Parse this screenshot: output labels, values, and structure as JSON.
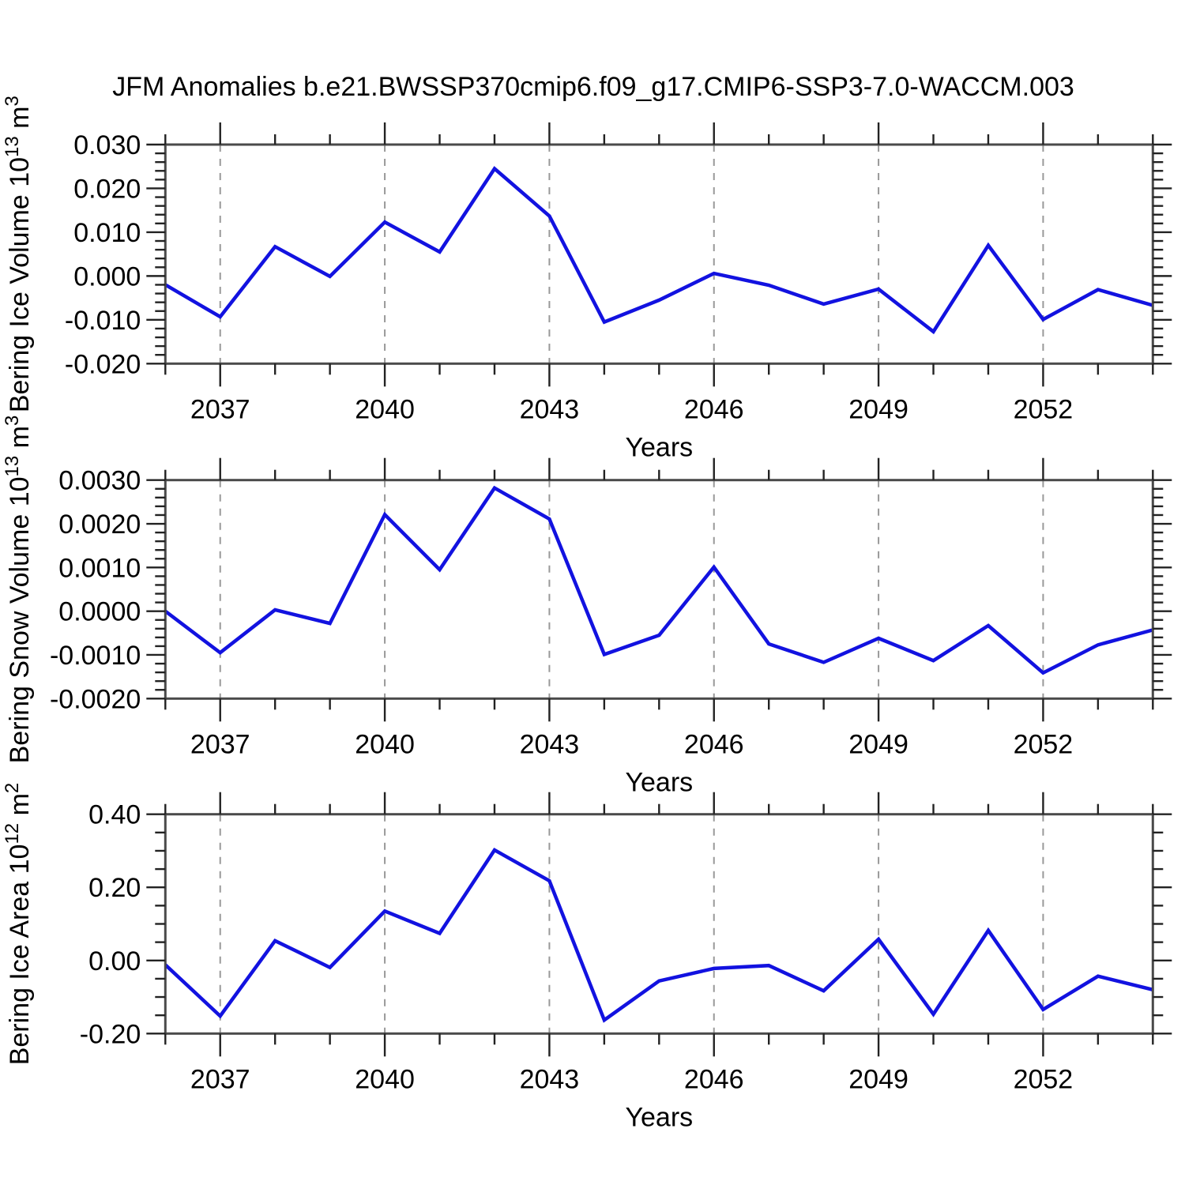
{
  "figure": {
    "title": "JFM Anomalies b.e21.BWSSP370cmip6.f09_g17.CMIP6-SSP3-7.0-WACCM.003",
    "background": "#ffffff",
    "line_color": "#1212e0",
    "frame_color": "#4a4a4a",
    "tick_color": "#222222",
    "grid_color": "#999999",
    "text_color": "#000000"
  },
  "chart_data": [
    {
      "type": "line",
      "panel": "bering-ice-volume",
      "ylabel": "Bering Ice Volume 10^13 m^3",
      "ylabel_parts": [
        {
          "text": "Bering Ice Volume 10"
        },
        {
          "text": "13",
          "sup": true
        },
        {
          "text": " m"
        },
        {
          "text": "3",
          "sup": true
        }
      ],
      "xlabel": "Years",
      "xlim": [
        2036,
        2054
      ],
      "ylim": [
        -0.02,
        0.03
      ],
      "x": [
        2036,
        2037,
        2038,
        2039,
        2040,
        2041,
        2042,
        2043,
        2044,
        2045,
        2046,
        2047,
        2048,
        2049,
        2050,
        2051,
        2052,
        2053,
        2054
      ],
      "values": [
        -0.002,
        -0.0093,
        0.0067,
        -0.0001,
        0.0123,
        0.0055,
        0.0245,
        0.0137,
        -0.0105,
        -0.0055,
        0.0006,
        -0.0021,
        -0.0064,
        -0.003,
        -0.0127,
        0.007,
        -0.0099,
        -0.0031,
        -0.0067
      ],
      "yticks": [
        {
          "v": 0.03,
          "label": "0.030"
        },
        {
          "v": 0.02,
          "label": "0.020"
        },
        {
          "v": 0.01,
          "label": "0.010"
        },
        {
          "v": 0.0,
          "label": "0.000"
        },
        {
          "v": -0.01,
          "label": "-0.010"
        },
        {
          "v": -0.02,
          "label": "-0.020"
        }
      ],
      "ytick_minor_step": 0.002,
      "xticks": [
        {
          "v": 2037,
          "label": "2037"
        },
        {
          "v": 2040,
          "label": "2040"
        },
        {
          "v": 2043,
          "label": "2043"
        },
        {
          "v": 2046,
          "label": "2046"
        },
        {
          "v": 2049,
          "label": "2049"
        },
        {
          "v": 2052,
          "label": "2052"
        }
      ],
      "xtick_minor_step": 1,
      "grid": "vertical dashed at major x ticks",
      "legend": "none"
    },
    {
      "type": "line",
      "panel": "bering-snow-volume",
      "ylabel": "Bering Snow Volume 10^13 m^3",
      "ylabel_parts": [
        {
          "text": "Bering Snow Volume 10"
        },
        {
          "text": "13",
          "sup": true
        },
        {
          "text": " m"
        },
        {
          "text": "3",
          "sup": true
        }
      ],
      "xlabel": "Years",
      "xlim": [
        2036,
        2054
      ],
      "ylim": [
        -0.002,
        0.003
      ],
      "x": [
        2036,
        2037,
        2038,
        2039,
        2040,
        2041,
        2042,
        2043,
        2044,
        2045,
        2046,
        2047,
        2048,
        2049,
        2050,
        2051,
        2052,
        2053,
        2054
      ],
      "values": [
        0.0,
        -0.00095,
        3e-05,
        -0.00028,
        0.00221,
        0.00095,
        0.00282,
        0.00211,
        -0.00099,
        -0.00055,
        0.00101,
        -0.00075,
        -0.00117,
        -0.00062,
        -0.00113,
        -0.00033,
        -0.00141,
        -0.00077,
        -0.00043
      ],
      "yticks": [
        {
          "v": 0.003,
          "label": "0.0030"
        },
        {
          "v": 0.002,
          "label": "0.0020"
        },
        {
          "v": 0.001,
          "label": "0.0010"
        },
        {
          "v": 0.0,
          "label": "0.0000"
        },
        {
          "v": -0.001,
          "label": "-0.0010"
        },
        {
          "v": -0.002,
          "label": "-0.0020"
        }
      ],
      "ytick_minor_step": 0.0002,
      "xticks": [
        {
          "v": 2037,
          "label": "2037"
        },
        {
          "v": 2040,
          "label": "2040"
        },
        {
          "v": 2043,
          "label": "2043"
        },
        {
          "v": 2046,
          "label": "2046"
        },
        {
          "v": 2049,
          "label": "2049"
        },
        {
          "v": 2052,
          "label": "2052"
        }
      ],
      "xtick_minor_step": 1,
      "grid": "vertical dashed at major x ticks",
      "legend": "none"
    },
    {
      "type": "line",
      "panel": "bering-ice-area",
      "ylabel": "Bering Ice Area 10^12 m^2",
      "ylabel_parts": [
        {
          "text": "Bering Ice Area 10"
        },
        {
          "text": "12",
          "sup": true
        },
        {
          "text": " m"
        },
        {
          "text": "2",
          "sup": true
        }
      ],
      "xlabel": "Years",
      "xlim": [
        2036,
        2054
      ],
      "ylim": [
        -0.2,
        0.4
      ],
      "x": [
        2036,
        2037,
        2038,
        2039,
        2040,
        2041,
        2042,
        2043,
        2044,
        2045,
        2046,
        2047,
        2048,
        2049,
        2050,
        2051,
        2052,
        2053,
        2054
      ],
      "values": [
        -0.012,
        -0.152,
        0.054,
        -0.019,
        0.135,
        0.074,
        0.302,
        0.218,
        -0.163,
        -0.056,
        -0.022,
        -0.014,
        -0.083,
        0.058,
        -0.147,
        0.082,
        -0.134,
        -0.043,
        -0.08
      ],
      "yticks": [
        {
          "v": 0.4,
          "label": "0.40"
        },
        {
          "v": 0.2,
          "label": "0.20"
        },
        {
          "v": 0.0,
          "label": "0.00"
        },
        {
          "v": -0.2,
          "label": "-0.20"
        }
      ],
      "ytick_minor_step": 0.05,
      "xticks": [
        {
          "v": 2037,
          "label": "2037"
        },
        {
          "v": 2040,
          "label": "2040"
        },
        {
          "v": 2043,
          "label": "2043"
        },
        {
          "v": 2046,
          "label": "2046"
        },
        {
          "v": 2049,
          "label": "2049"
        },
        {
          "v": 2052,
          "label": "2052"
        }
      ],
      "xtick_minor_step": 1,
      "grid": "vertical dashed at major x ticks",
      "legend": "none"
    }
  ]
}
